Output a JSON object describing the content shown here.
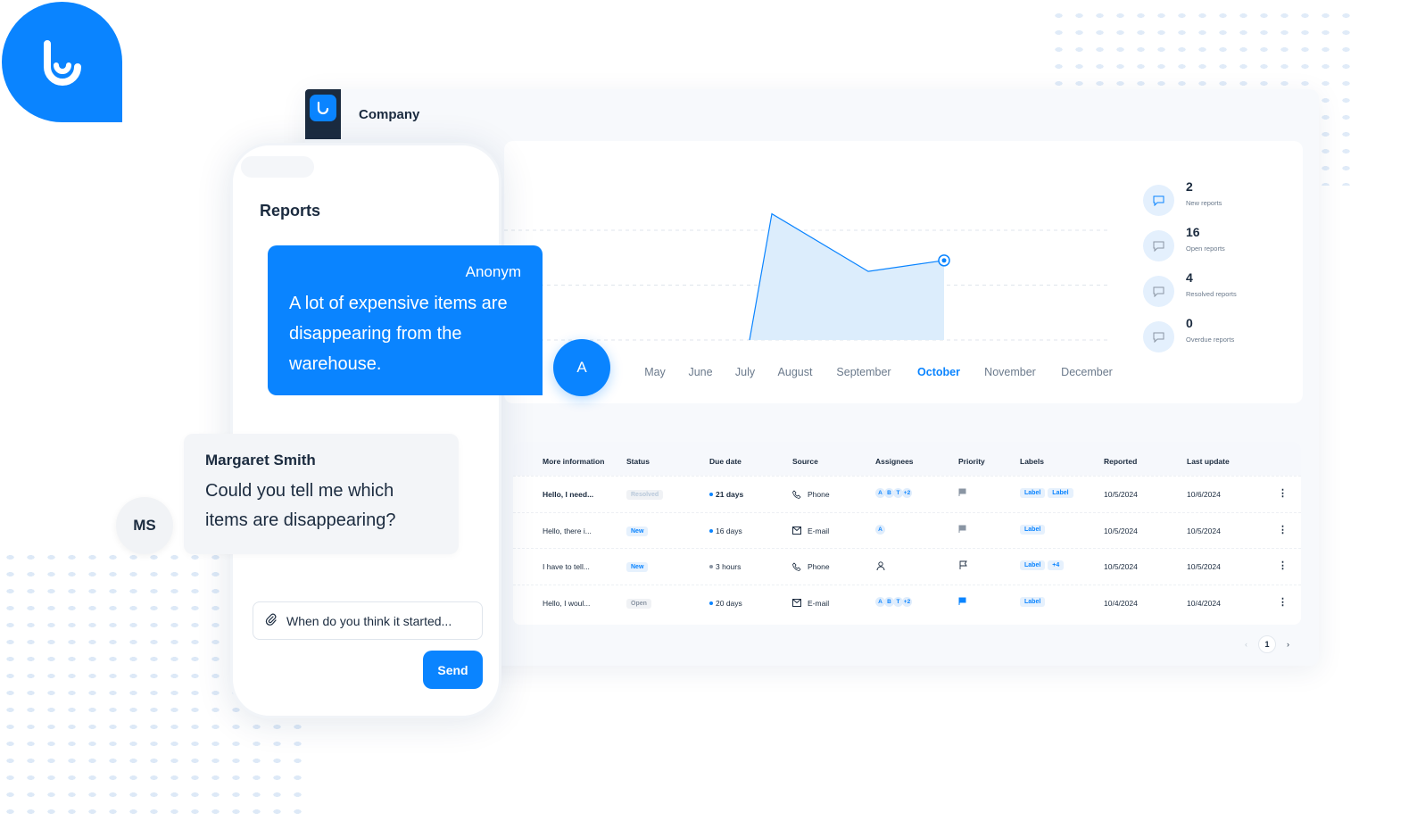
{
  "brand": {
    "color": "#0a84ff",
    "dark": "#1b2b3f"
  },
  "header": {
    "title": "Company"
  },
  "chart_data": {
    "type": "area",
    "categories": [
      "May",
      "June",
      "July",
      "August",
      "September",
      "October",
      "November",
      "December"
    ],
    "x_positions_labels": [
      "May",
      "June",
      "July",
      "August",
      "September",
      "October",
      "November",
      "December"
    ],
    "highlighted": "October",
    "series": [
      {
        "points": [
          {
            "x": "July",
            "y": 0
          },
          {
            "x": "July/August",
            "y": 2.3
          },
          {
            "x": "September",
            "y": 1.25
          },
          {
            "x": "October",
            "y": 1.45
          }
        ]
      }
    ],
    "grid": true,
    "ylim": [
      0,
      2.5
    ]
  },
  "stats": [
    {
      "value": "2",
      "label": "New reports",
      "icon": "chat-plus-icon"
    },
    {
      "value": "16",
      "label": "Open reports",
      "icon": "chat-dots-icon"
    },
    {
      "value": "4",
      "label": "Resolved reports",
      "icon": "chat-check-icon"
    },
    {
      "value": "0",
      "label": "Overdue reports",
      "icon": "chat-alert-icon"
    }
  ],
  "table": {
    "headers": [
      "More information",
      "Status",
      "Due date",
      "Source",
      "Assignees",
      "Priority",
      "Labels",
      "Reported",
      "Last update"
    ],
    "rows": [
      {
        "info": "Hello, I need...",
        "status": "Resolved",
        "due": "21 days",
        "source": "Phone",
        "assignees": [
          "A",
          "B",
          "T",
          "+2"
        ],
        "priority": "gray",
        "labels": [
          "Label",
          "Label"
        ],
        "reported": "10/5/2024",
        "updated": "10/6/2024"
      },
      {
        "info": "Hello, there i...",
        "status": "New",
        "due": "16 days",
        "source": "E-mail",
        "assignees": [
          "A"
        ],
        "priority": "gray",
        "labels": [
          "Label"
        ],
        "reported": "10/5/2024",
        "updated": "10/5/2024"
      },
      {
        "info": "I have to tell...",
        "status": "New",
        "due": "3 hours",
        "source": "Phone",
        "assignees": [],
        "priority": "none",
        "labels": [
          "Label",
          "+4"
        ],
        "reported": "10/5/2024",
        "updated": "10/5/2024"
      },
      {
        "info": "Hello, I woul...",
        "status": "Open",
        "due": "20 days",
        "source": "E-mail",
        "assignees": [
          "A",
          "B",
          "T",
          "+2"
        ],
        "priority": "blue",
        "labels": [
          "Label"
        ],
        "reported": "10/4/2024",
        "updated": "10/4/2024"
      }
    ]
  },
  "pager": {
    "page": "1"
  },
  "phone": {
    "title": "Reports",
    "msg1": {
      "author": "Anonym",
      "text": "A lot of expensive items are disappearing from the warehouse.",
      "avatar": "A"
    },
    "msg2": {
      "author": "Margaret Smith",
      "text": "Could you tell me which items are disappearing?",
      "avatar": "MS"
    },
    "input_value": "When do you think it started...",
    "send_label": "Send"
  }
}
